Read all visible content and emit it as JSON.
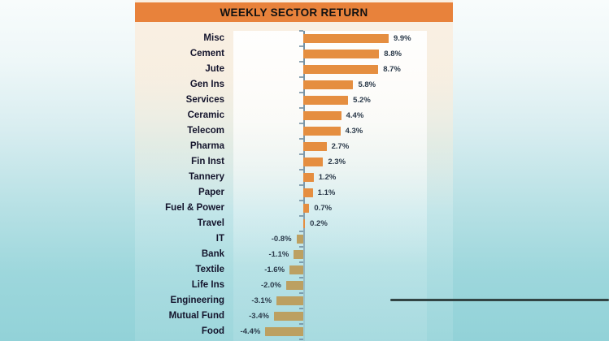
{
  "title_bar": {
    "label": "WEEKLY SECTOR RETURN",
    "background_color": "#e8823b",
    "text_color": "#121212"
  },
  "colors": {
    "positive_bar": "#e58e40",
    "negative_bar": "#bca061",
    "value_text": "#2b3a4a",
    "label_text": "#14142c",
    "axis": "#6e8ca0",
    "annotation_line": "#324444",
    "page_top": "#f8fcfc",
    "page_bottom": "#92d2d8",
    "card_top": "#faefe2"
  },
  "chart_data": {
    "type": "bar",
    "orientation": "horizontal",
    "title": "WEEKLY SECTOR RETURN",
    "xlabel": "",
    "ylabel": "",
    "categories": [
      "Misc",
      "Cement",
      "Jute",
      "Gen Ins",
      "Services",
      "Ceramic",
      "Telecom",
      "Pharma",
      "Fin Inst",
      "Tannery",
      "Paper",
      "Fuel & Power",
      "Travel",
      "IT",
      "Bank",
      "Textile",
      "Life Ins",
      "Engineering",
      "Mutual Fund",
      "Food"
    ],
    "values": [
      9.9,
      8.8,
      8.7,
      5.8,
      5.2,
      4.4,
      4.3,
      2.7,
      2.3,
      1.2,
      1.1,
      0.7,
      0.2,
      -0.8,
      -1.1,
      -1.6,
      -2.0,
      -3.1,
      -3.4,
      -4.4
    ],
    "value_labels": [
      "9.9%",
      "8.8%",
      "8.7%",
      "5.8%",
      "5.2%",
      "4.4%",
      "4.3%",
      "2.7%",
      "2.3%",
      "1.2%",
      "1.1%",
      "0.7%",
      "0.2%",
      "-0.8%",
      "-1.1%",
      "-1.6%",
      "-2.0%",
      "-3.1%",
      "-3.4%",
      "-4.4%"
    ],
    "xlim": [
      -8.1,
      14.3
    ],
    "grid": false,
    "legend": false,
    "data_labels": true
  }
}
